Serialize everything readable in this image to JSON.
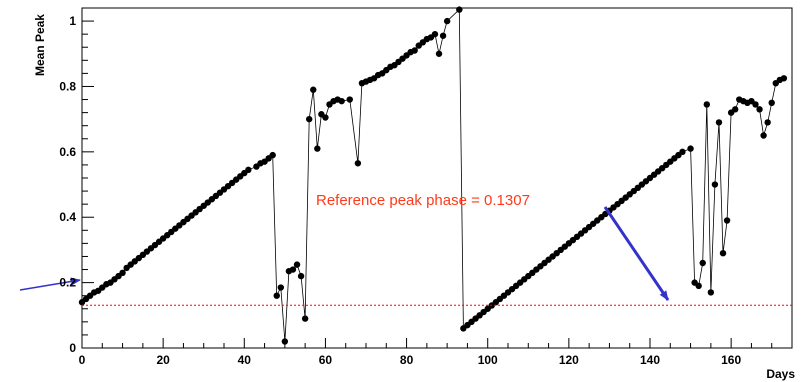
{
  "chart_data": {
    "type": "scatter",
    "title": "",
    "xlabel": "Days",
    "ylabel": "Mean Peak",
    "xlim": [
      0,
      175
    ],
    "ylim": [
      0,
      1.04
    ],
    "grid": false,
    "x_ticks": [
      "0",
      "20",
      "40",
      "60",
      "80",
      "100",
      "120",
      "140",
      "160"
    ],
    "y_ticks": [
      "0",
      "0.2",
      "0.4",
      "0.6",
      "0.8",
      "1"
    ],
    "reference_line": {
      "y": 0.1307,
      "style": "dotted",
      "color": "#ff0000"
    },
    "annotation": {
      "text": "Reference peak phase = 0.1307",
      "color": "#ff3a1a",
      "arrow_color": "#3333cc"
    },
    "series": [
      {
        "marker": "filled-circle",
        "connected": true,
        "points": [
          [
            0,
            0.14
          ],
          [
            1,
            0.15
          ],
          [
            2,
            0.16
          ],
          [
            3,
            0.17
          ],
          [
            4,
            0.175
          ],
          [
            5,
            0.185
          ],
          [
            6,
            0.195
          ],
          [
            7,
            0.2
          ],
          [
            8,
            0.21
          ],
          [
            9,
            0.22
          ],
          [
            10,
            0.23
          ],
          [
            11,
            0.245
          ],
          [
            12,
            0.255
          ],
          [
            13,
            0.265
          ],
          [
            14,
            0.275
          ],
          [
            15,
            0.285
          ],
          [
            16,
            0.295
          ],
          [
            17,
            0.305
          ],
          [
            18,
            0.315
          ],
          [
            19,
            0.325
          ],
          [
            20,
            0.335
          ],
          [
            21,
            0.345
          ],
          [
            22,
            0.355
          ],
          [
            23,
            0.365
          ],
          [
            24,
            0.375
          ],
          [
            25,
            0.385
          ],
          [
            26,
            0.395
          ],
          [
            27,
            0.405
          ],
          [
            28,
            0.415
          ],
          [
            29,
            0.425
          ],
          [
            30,
            0.435
          ],
          [
            31,
            0.445
          ],
          [
            32,
            0.455
          ],
          [
            33,
            0.465
          ],
          [
            34,
            0.475
          ],
          [
            35,
            0.485
          ],
          [
            36,
            0.495
          ],
          [
            37,
            0.505
          ],
          [
            38,
            0.515
          ],
          [
            39,
            0.525
          ],
          [
            40,
            0.535
          ],
          [
            41,
            0.545
          ],
          [
            43,
            0.555
          ],
          [
            44,
            0.565
          ],
          [
            45,
            0.57
          ],
          [
            46,
            0.58
          ],
          [
            47,
            0.59
          ],
          [
            48,
            0.16
          ],
          [
            49,
            0.185
          ],
          [
            50,
            0.02
          ],
          [
            51,
            0.235
          ],
          [
            52,
            0.24
          ],
          [
            53,
            0.255
          ],
          [
            54,
            0.22
          ],
          [
            55,
            0.09
          ],
          [
            56,
            0.7
          ],
          [
            57,
            0.79
          ],
          [
            58,
            0.61
          ],
          [
            59,
            0.715
          ],
          [
            60,
            0.705
          ],
          [
            61,
            0.745
          ],
          [
            62,
            0.755
          ],
          [
            63,
            0.76
          ],
          [
            64,
            0.755
          ],
          [
            66,
            0.76
          ],
          [
            68,
            0.565
          ],
          [
            69,
            0.81
          ],
          [
            70,
            0.815
          ],
          [
            71,
            0.82
          ],
          [
            72,
            0.825
          ],
          [
            73,
            0.835
          ],
          [
            74,
            0.84
          ],
          [
            75,
            0.85
          ],
          [
            76,
            0.86
          ],
          [
            77,
            0.865
          ],
          [
            78,
            0.875
          ],
          [
            79,
            0.885
          ],
          [
            80,
            0.895
          ],
          [
            81,
            0.905
          ],
          [
            82,
            0.91
          ],
          [
            83,
            0.925
          ],
          [
            84,
            0.935
          ],
          [
            85,
            0.945
          ],
          [
            86,
            0.95
          ],
          [
            87,
            0.96
          ],
          [
            88,
            0.9
          ],
          [
            89,
            0.955
          ],
          [
            90,
            1.0
          ],
          [
            93,
            1.035
          ],
          [
            94,
            0.06
          ],
          [
            95,
            0.07
          ],
          [
            96,
            0.08
          ],
          [
            97,
            0.09
          ],
          [
            98,
            0.1
          ],
          [
            99,
            0.11
          ],
          [
            100,
            0.12
          ],
          [
            101,
            0.13
          ],
          [
            102,
            0.14
          ],
          [
            103,
            0.15
          ],
          [
            104,
            0.16
          ],
          [
            105,
            0.17
          ],
          [
            106,
            0.18
          ],
          [
            107,
            0.19
          ],
          [
            108,
            0.2
          ],
          [
            109,
            0.21
          ],
          [
            110,
            0.22
          ],
          [
            111,
            0.23
          ],
          [
            112,
            0.24
          ],
          [
            113,
            0.25
          ],
          [
            114,
            0.26
          ],
          [
            115,
            0.27
          ],
          [
            116,
            0.28
          ],
          [
            117,
            0.29
          ],
          [
            118,
            0.3
          ],
          [
            119,
            0.31
          ],
          [
            120,
            0.32
          ],
          [
            121,
            0.33
          ],
          [
            122,
            0.34
          ],
          [
            123,
            0.35
          ],
          [
            124,
            0.36
          ],
          [
            125,
            0.37
          ],
          [
            126,
            0.38
          ],
          [
            127,
            0.39
          ],
          [
            128,
            0.4
          ],
          [
            129,
            0.41
          ],
          [
            130,
            0.42
          ],
          [
            131,
            0.43
          ],
          [
            132,
            0.44
          ],
          [
            133,
            0.45
          ],
          [
            134,
            0.46
          ],
          [
            135,
            0.47
          ],
          [
            136,
            0.48
          ],
          [
            137,
            0.49
          ],
          [
            138,
            0.5
          ],
          [
            139,
            0.51
          ],
          [
            140,
            0.52
          ],
          [
            141,
            0.53
          ],
          [
            142,
            0.54
          ],
          [
            143,
            0.55
          ],
          [
            144,
            0.56
          ],
          [
            145,
            0.57
          ],
          [
            146,
            0.58
          ],
          [
            147,
            0.59
          ],
          [
            148,
            0.6
          ],
          [
            150,
            0.61
          ],
          [
            151,
            0.2
          ],
          [
            152,
            0.19
          ],
          [
            153,
            0.26
          ],
          [
            154,
            0.745
          ],
          [
            155,
            0.17
          ],
          [
            156,
            0.5
          ],
          [
            157,
            0.69
          ],
          [
            158,
            0.29
          ],
          [
            159,
            0.39
          ],
          [
            160,
            0.72
          ],
          [
            161,
            0.73
          ],
          [
            162,
            0.76
          ],
          [
            163,
            0.755
          ],
          [
            164,
            0.75
          ],
          [
            165,
            0.755
          ],
          [
            166,
            0.745
          ],
          [
            167,
            0.73
          ],
          [
            168,
            0.65
          ],
          [
            169,
            0.69
          ],
          [
            170,
            0.75
          ],
          [
            171,
            0.81
          ],
          [
            172,
            0.82
          ],
          [
            173,
            0.825
          ]
        ]
      }
    ]
  }
}
